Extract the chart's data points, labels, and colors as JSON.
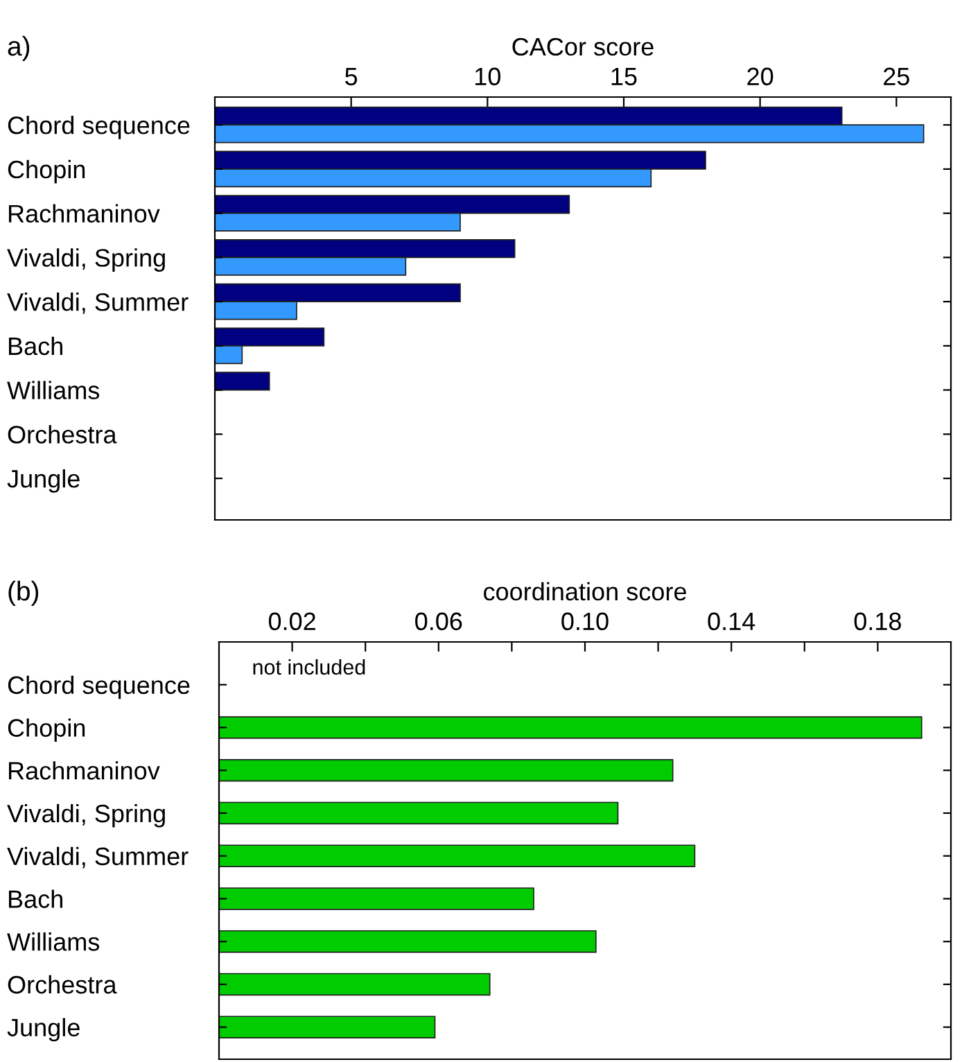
{
  "chart_data": [
    {
      "type": "bar",
      "orientation": "horizontal",
      "title": "a)",
      "xlabel": "CACor score",
      "categories": [
        "Chord sequence",
        "Chopin",
        "Rachmaninov",
        "Vivaldi, Spring",
        "Vivaldi, Summer",
        "Bach",
        "Williams",
        "Orchestra",
        "Jungle"
      ],
      "series": [
        {
          "color": "#000080",
          "values": [
            23.0,
            18.0,
            13.0,
            11.0,
            9.0,
            4.0,
            2.0,
            null,
            null
          ]
        },
        {
          "color": "#3399ff",
          "values": [
            26.0,
            16.0,
            9.0,
            7.0,
            3.0,
            1.0,
            null,
            null,
            null
          ]
        }
      ],
      "xlim": [
        0,
        27
      ],
      "xticks": [
        5,
        10,
        15,
        20,
        25
      ],
      "grid": false,
      "legend": false
    },
    {
      "type": "bar",
      "orientation": "horizontal",
      "title": "(b)",
      "xlabel": "coordination score",
      "categories": [
        "Chord sequence",
        "Chopin",
        "Rachmaninov",
        "Vivaldi, Spring",
        "Vivaldi, Summer",
        "Bach",
        "Williams",
        "Orchestra",
        "Jungle"
      ],
      "series": [
        {
          "color": "#00cc00",
          "values": [
            null,
            0.192,
            0.124,
            0.109,
            0.13,
            0.086,
            0.103,
            0.074,
            0.059
          ]
        }
      ],
      "annotations": [
        "not included"
      ],
      "xlim": [
        0,
        0.2
      ],
      "xticks": [
        {
          "value": 0.02,
          "label": "0.02"
        },
        {
          "value": 0.04,
          "label": null
        },
        {
          "value": 0.06,
          "label": "0.06"
        },
        {
          "value": 0.08,
          "label": null
        },
        {
          "value": 0.1,
          "label": "0.10"
        },
        {
          "value": 0.12,
          "label": null
        },
        {
          "value": 0.14,
          "label": "0.14"
        },
        {
          "value": 0.16,
          "label": null
        },
        {
          "value": 0.18,
          "label": "0.18"
        }
      ],
      "grid": false,
      "legend": false
    }
  ]
}
